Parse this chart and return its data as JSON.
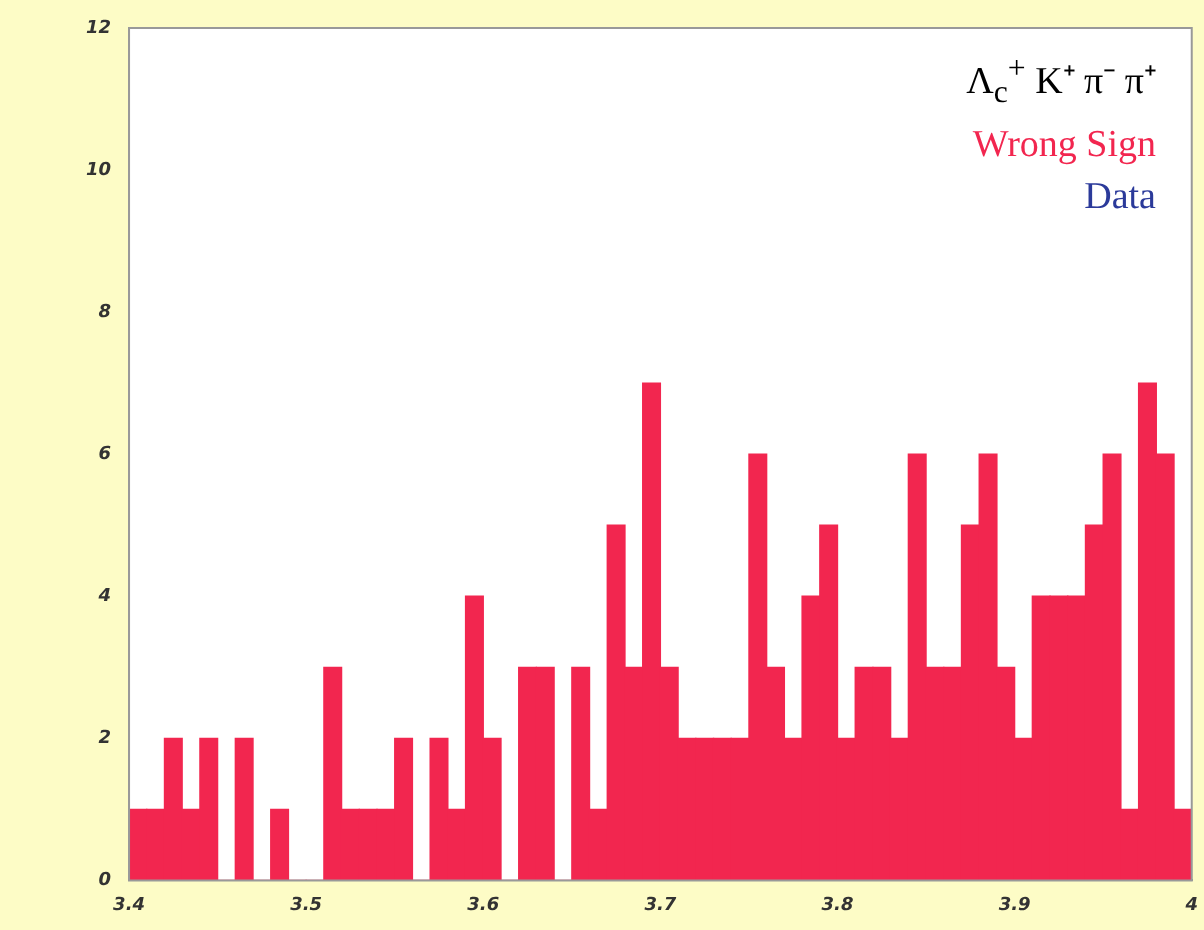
{
  "chart_data": {
    "type": "histogram",
    "color": "#f2264f",
    "bins": [
      3.4,
      3.41,
      3.42,
      3.43,
      3.44,
      3.45,
      3.46,
      3.47,
      3.48,
      3.49,
      3.5,
      3.51,
      3.52,
      3.53,
      3.54,
      3.55,
      3.56,
      3.57,
      3.58,
      3.59,
      3.6,
      3.61,
      3.62,
      3.63,
      3.64,
      3.65,
      3.66,
      3.67,
      3.68,
      3.69,
      3.7,
      3.71,
      3.72,
      3.73,
      3.74,
      3.75,
      3.76,
      3.77,
      3.78,
      3.79,
      3.8,
      3.81,
      3.82,
      3.83,
      3.84,
      3.85,
      3.86,
      3.87,
      3.88,
      3.89,
      3.9,
      3.91,
      3.92,
      3.93,
      3.94,
      3.95,
      3.96,
      3.97,
      3.98,
      3.99,
      4.0
    ],
    "values": [
      1,
      1,
      2,
      1,
      2,
      0,
      2,
      0,
      1,
      0,
      0,
      3,
      1,
      1,
      1,
      2,
      0,
      2,
      1,
      4,
      2,
      0,
      3,
      3,
      0,
      3,
      1,
      5,
      3,
      7,
      3,
      2,
      2,
      2,
      2,
      6,
      3,
      2,
      4,
      5,
      2,
      3,
      3,
      2,
      6,
      3,
      3,
      5,
      6,
      3,
      2,
      4,
      4,
      4,
      5,
      6,
      1,
      7,
      6,
      1
    ],
    "xlim": [
      3.4,
      4.0
    ],
    "xticks": [
      3.4,
      3.5,
      3.6,
      3.7,
      3.8,
      3.9,
      4
    ],
    "ylim": [
      0,
      12
    ],
    "yticks": [
      0,
      2,
      4,
      6,
      8,
      10,
      12
    ],
    "annotations": [
      "Λ$_{c}$$^{+}$ K⁺ π⁻ π⁺",
      "Wrong Sign",
      "Data"
    ]
  }
}
